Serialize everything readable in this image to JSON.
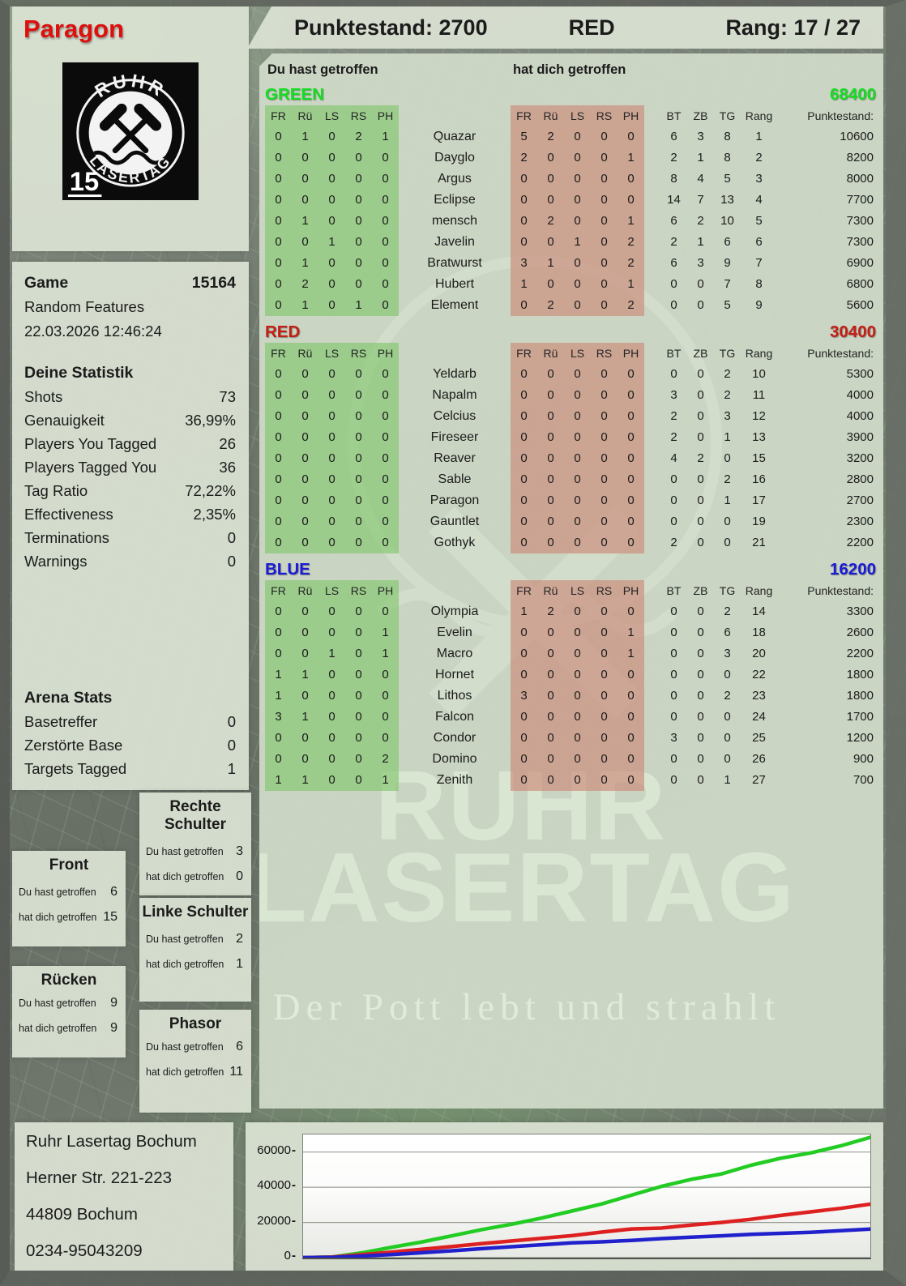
{
  "top_bar": {
    "punktestand": "Punktestand: 2700",
    "team": "RED",
    "rang": "Rang: 17 / 27"
  },
  "player": {
    "name": "Paragon",
    "color": "#dd0f0f"
  },
  "logo": {
    "arc_top": "RUHR",
    "arc_bottom": "LASERTAG",
    "badge": "15"
  },
  "hit_labels": {
    "you": "Du hast getroffen",
    "them": "hat dich getroffen"
  },
  "game": {
    "label": "Game",
    "number": "15164",
    "mode": "Random Features",
    "datetime": "22.03.2026 12:46:24"
  },
  "deine_statistik": {
    "title": "Deine Statistik",
    "rows": [
      {
        "label": "Shots",
        "value": "73"
      },
      {
        "label": "Genauigkeit",
        "value": "36,99%"
      },
      {
        "label": "Players You Tagged",
        "value": "26"
      },
      {
        "label": "Players Tagged You",
        "value": "36"
      },
      {
        "label": "Tag Ratio",
        "value": "72,22%"
      },
      {
        "label": "Effectiveness",
        "value": "2,35%"
      },
      {
        "label": "Terminations",
        "value": "0"
      },
      {
        "label": "Warnings",
        "value": "0"
      }
    ]
  },
  "arena_stats": {
    "title": "Arena Stats",
    "rows": [
      {
        "label": "Basetreffer",
        "value": "0"
      },
      {
        "label": "Zerstörte Base",
        "value": "0"
      },
      {
        "label": "Targets Tagged",
        "value": "1"
      }
    ]
  },
  "body_zones": {
    "rechte_schulter": {
      "title": "Rechte Schulter",
      "you": "3",
      "them": "0"
    },
    "front": {
      "title": "Front",
      "you": "6",
      "them": "15"
    },
    "linke_schulter": {
      "title": "Linke Schulter",
      "you": "2",
      "them": "1"
    },
    "ruecken": {
      "title": "Rücken",
      "you": "9",
      "them": "9"
    },
    "phasor": {
      "title": "Phasor",
      "you": "6",
      "them": "11"
    }
  },
  "columns": {
    "left": [
      "FR",
      "Rü",
      "LS",
      "RS",
      "PH"
    ],
    "right": [
      "FR",
      "Rü",
      "LS",
      "RS",
      "PH"
    ],
    "bt": "BT",
    "zb": "ZB",
    "tg": "TG",
    "rang": "Rang",
    "punkte": "Punktestand:"
  },
  "teams": [
    {
      "name": "GREEN",
      "color": "#15dd22",
      "total": "68400",
      "rows": [
        {
          "hits_by_you": [
            0,
            1,
            0,
            2,
            1
          ],
          "player": "Quazar",
          "hits_on_you": [
            5,
            2,
            0,
            0,
            0
          ],
          "bt": 6,
          "zb": 3,
          "tg": 8,
          "rang": 1,
          "punktestand": 10600
        },
        {
          "hits_by_you": [
            0,
            0,
            0,
            0,
            0
          ],
          "player": "Dayglo",
          "hits_on_you": [
            2,
            0,
            0,
            0,
            1
          ],
          "bt": 2,
          "zb": 1,
          "tg": 8,
          "rang": 2,
          "punktestand": 8200
        },
        {
          "hits_by_you": [
            0,
            0,
            0,
            0,
            0
          ],
          "player": "Argus",
          "hits_on_you": [
            0,
            0,
            0,
            0,
            0
          ],
          "bt": 8,
          "zb": 4,
          "tg": 5,
          "rang": 3,
          "punktestand": 8000
        },
        {
          "hits_by_you": [
            0,
            0,
            0,
            0,
            0
          ],
          "player": "Eclipse",
          "hits_on_you": [
            0,
            0,
            0,
            0,
            0
          ],
          "bt": 14,
          "zb": 7,
          "tg": 13,
          "rang": 4,
          "punktestand": 7700
        },
        {
          "hits_by_you": [
            0,
            1,
            0,
            0,
            0
          ],
          "player": "mensch",
          "hits_on_you": [
            0,
            2,
            0,
            0,
            1
          ],
          "bt": 6,
          "zb": 2,
          "tg": 10,
          "rang": 5,
          "punktestand": 7300
        },
        {
          "hits_by_you": [
            0,
            0,
            1,
            0,
            0
          ],
          "player": "Javelin",
          "hits_on_you": [
            0,
            0,
            1,
            0,
            2
          ],
          "bt": 2,
          "zb": 1,
          "tg": 6,
          "rang": 6,
          "punktestand": 7300
        },
        {
          "hits_by_you": [
            0,
            1,
            0,
            0,
            0
          ],
          "player": "Bratwurst",
          "hits_on_you": [
            3,
            1,
            0,
            0,
            2
          ],
          "bt": 6,
          "zb": 3,
          "tg": 9,
          "rang": 7,
          "punktestand": 6900
        },
        {
          "hits_by_you": [
            0,
            2,
            0,
            0,
            0
          ],
          "player": "Hubert",
          "hits_on_you": [
            1,
            0,
            0,
            0,
            1
          ],
          "bt": 0,
          "zb": 0,
          "tg": 7,
          "rang": 8,
          "punktestand": 6800
        },
        {
          "hits_by_you": [
            0,
            1,
            0,
            1,
            0
          ],
          "player": "Element",
          "hits_on_you": [
            0,
            2,
            0,
            0,
            2
          ],
          "bt": 0,
          "zb": 0,
          "tg": 5,
          "rang": 9,
          "punktestand": 5600
        }
      ]
    },
    {
      "name": "RED",
      "color": "#c41e15",
      "total": "30400",
      "rows": [
        {
          "hits_by_you": [
            0,
            0,
            0,
            0,
            0
          ],
          "player": "Yeldarb",
          "hits_on_you": [
            0,
            0,
            0,
            0,
            0
          ],
          "bt": 0,
          "zb": 0,
          "tg": 2,
          "rang": 10,
          "punktestand": 5300
        },
        {
          "hits_by_you": [
            0,
            0,
            0,
            0,
            0
          ],
          "player": "Napalm",
          "hits_on_you": [
            0,
            0,
            0,
            0,
            0
          ],
          "bt": 3,
          "zb": 0,
          "tg": 2,
          "rang": 11,
          "punktestand": 4000
        },
        {
          "hits_by_you": [
            0,
            0,
            0,
            0,
            0
          ],
          "player": "Celcius",
          "hits_on_you": [
            0,
            0,
            0,
            0,
            0
          ],
          "bt": 2,
          "zb": 0,
          "tg": 3,
          "rang": 12,
          "punktestand": 4000
        },
        {
          "hits_by_you": [
            0,
            0,
            0,
            0,
            0
          ],
          "player": "Fireseer",
          "hits_on_you": [
            0,
            0,
            0,
            0,
            0
          ],
          "bt": 2,
          "zb": 0,
          "tg": 1,
          "rang": 13,
          "punktestand": 3900
        },
        {
          "hits_by_you": [
            0,
            0,
            0,
            0,
            0
          ],
          "player": "Reaver",
          "hits_on_you": [
            0,
            0,
            0,
            0,
            0
          ],
          "bt": 4,
          "zb": 2,
          "tg": 0,
          "rang": 15,
          "punktestand": 3200
        },
        {
          "hits_by_you": [
            0,
            0,
            0,
            0,
            0
          ],
          "player": "Sable",
          "hits_on_you": [
            0,
            0,
            0,
            0,
            0
          ],
          "bt": 0,
          "zb": 0,
          "tg": 2,
          "rang": 16,
          "punktestand": 2800
        },
        {
          "hits_by_you": [
            0,
            0,
            0,
            0,
            0
          ],
          "player": "Paragon",
          "hits_on_you": [
            0,
            0,
            0,
            0,
            0
          ],
          "bt": 0,
          "zb": 0,
          "tg": 1,
          "rang": 17,
          "punktestand": 2700
        },
        {
          "hits_by_you": [
            0,
            0,
            0,
            0,
            0
          ],
          "player": "Gauntlet",
          "hits_on_you": [
            0,
            0,
            0,
            0,
            0
          ],
          "bt": 0,
          "zb": 0,
          "tg": 0,
          "rang": 19,
          "punktestand": 2300
        },
        {
          "hits_by_you": [
            0,
            0,
            0,
            0,
            0
          ],
          "player": "Gothyk",
          "hits_on_you": [
            0,
            0,
            0,
            0,
            0
          ],
          "bt": 2,
          "zb": 0,
          "tg": 0,
          "rang": 21,
          "punktestand": 2200
        }
      ]
    },
    {
      "name": "BLUE",
      "color": "#1b1bd6",
      "total": "16200",
      "rows": [
        {
          "hits_by_you": [
            0,
            0,
            0,
            0,
            0
          ],
          "player": "Olympia",
          "hits_on_you": [
            1,
            2,
            0,
            0,
            0
          ],
          "bt": 0,
          "zb": 0,
          "tg": 2,
          "rang": 14,
          "punktestand": 3300
        },
        {
          "hits_by_you": [
            0,
            0,
            0,
            0,
            1
          ],
          "player": "Evelin",
          "hits_on_you": [
            0,
            0,
            0,
            0,
            1
          ],
          "bt": 0,
          "zb": 0,
          "tg": 6,
          "rang": 18,
          "punktestand": 2600
        },
        {
          "hits_by_you": [
            0,
            0,
            1,
            0,
            1
          ],
          "player": "Macro",
          "hits_on_you": [
            0,
            0,
            0,
            0,
            1
          ],
          "bt": 0,
          "zb": 0,
          "tg": 3,
          "rang": 20,
          "punktestand": 2200
        },
        {
          "hits_by_you": [
            1,
            1,
            0,
            0,
            0
          ],
          "player": "Hornet",
          "hits_on_you": [
            0,
            0,
            0,
            0,
            0
          ],
          "bt": 0,
          "zb": 0,
          "tg": 0,
          "rang": 22,
          "punktestand": 1800
        },
        {
          "hits_by_you": [
            1,
            0,
            0,
            0,
            0
          ],
          "player": "Lithos",
          "hits_on_you": [
            3,
            0,
            0,
            0,
            0
          ],
          "bt": 0,
          "zb": 0,
          "tg": 2,
          "rang": 23,
          "punktestand": 1800
        },
        {
          "hits_by_you": [
            3,
            1,
            0,
            0,
            0
          ],
          "player": "Falcon",
          "hits_on_you": [
            0,
            0,
            0,
            0,
            0
          ],
          "bt": 0,
          "zb": 0,
          "tg": 0,
          "rang": 24,
          "punktestand": 1700
        },
        {
          "hits_by_you": [
            0,
            0,
            0,
            0,
            0
          ],
          "player": "Condor",
          "hits_on_you": [
            0,
            0,
            0,
            0,
            0
          ],
          "bt": 3,
          "zb": 0,
          "tg": 0,
          "rang": 25,
          "punktestand": 1200
        },
        {
          "hits_by_you": [
            0,
            0,
            0,
            0,
            2
          ],
          "player": "Domino",
          "hits_on_you": [
            0,
            0,
            0,
            0,
            0
          ],
          "bt": 0,
          "zb": 0,
          "tg": 0,
          "rang": 26,
          "punktestand": 900
        },
        {
          "hits_by_you": [
            1,
            1,
            0,
            0,
            1
          ],
          "player": "Zenith",
          "hits_on_you": [
            0,
            0,
            0,
            0,
            0
          ],
          "bt": 0,
          "zb": 0,
          "tg": 1,
          "rang": 27,
          "punktestand": 700
        }
      ]
    }
  ],
  "watermark": {
    "line1": "RUHR",
    "line2": "LASERTAG",
    "tagline": "Der Pott lebt und strahlt"
  },
  "address": {
    "lines": [
      "Ruhr Lasertag Bochum",
      "Herner Str. 221-223",
      "44809 Bochum",
      "0234-95043209"
    ]
  },
  "chart_data": {
    "type": "line",
    "title": "Score progression over game time",
    "xlabel": "",
    "ylabel": "",
    "ylim": [
      0,
      70000
    ],
    "yticks": [
      0,
      20000,
      40000,
      60000
    ],
    "grid": true,
    "legend": "none",
    "series": [
      {
        "name": "GREEN",
        "color": "#22cc22",
        "values": [
          0,
          400,
          2800,
          6000,
          9000,
          12500,
          16000,
          19000,
          22500,
          26500,
          30500,
          35500,
          40500,
          44500,
          47500,
          52500,
          56500,
          59500,
          63500,
          68400
        ]
      },
      {
        "name": "RED",
        "color": "#dd2020",
        "values": [
          0,
          300,
          1800,
          3200,
          4800,
          6300,
          8000,
          9500,
          11000,
          12500,
          14500,
          16300,
          16800,
          18500,
          20000,
          21800,
          24000,
          26000,
          28000,
          30400
        ]
      },
      {
        "name": "BLUE",
        "color": "#2020cc",
        "values": [
          0,
          200,
          900,
          1800,
          2800,
          3900,
          5100,
          6200,
          7300,
          8400,
          9000,
          9800,
          10800,
          11600,
          12400,
          13200,
          13800,
          14400,
          15300,
          16200
        ]
      }
    ]
  }
}
